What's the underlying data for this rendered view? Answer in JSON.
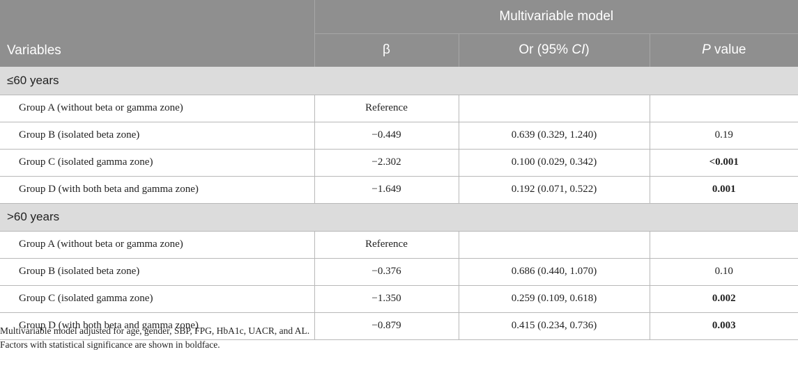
{
  "header": {
    "variables_label": "Variables",
    "group_label": "Multivariable model",
    "col_beta": "β",
    "col_or_prefix": "Or (95% ",
    "col_or_ci": "CI",
    "col_or_suffix": ")",
    "col_p_italic": "P",
    "col_p_suffix": " value"
  },
  "sections": [
    {
      "label": "≤60 years",
      "rows": [
        {
          "variable": "Group A (without beta or gamma zone)",
          "beta": "Reference",
          "or": "",
          "p": "",
          "p_bold": false
        },
        {
          "variable": "Group B (isolated beta zone)",
          "beta": "−0.449",
          "or": "0.639 (0.329, 1.240)",
          "p": "0.19",
          "p_bold": false
        },
        {
          "variable": "Group C (isolated gamma zone)",
          "beta": "−2.302",
          "or": "0.100 (0.029, 0.342)",
          "p": "<0.001",
          "p_bold": true
        },
        {
          "variable": "Group D (with both beta and gamma zone)",
          "beta": "−1.649",
          "or": "0.192 (0.071, 0.522)",
          "p": "0.001",
          "p_bold": true
        }
      ]
    },
    {
      "label": ">60 years",
      "rows": [
        {
          "variable": "Group A (without beta or gamma zone)",
          "beta": "Reference",
          "or": "",
          "p": "",
          "p_bold": false
        },
        {
          "variable": "Group B (isolated beta zone)",
          "beta": "−0.376",
          "or": "0.686 (0.440, 1.070)",
          "p": "0.10",
          "p_bold": false
        },
        {
          "variable": "Group C (isolated gamma zone)",
          "beta": "−1.350",
          "or": "0.259 (0.109, 0.618)",
          "p": "0.002",
          "p_bold": true
        },
        {
          "variable": "Group D (with both beta and gamma zone)",
          "beta": "−0.879",
          "or": "0.415 (0.234, 0.736)",
          "p": "0.003",
          "p_bold": true
        }
      ]
    }
  ],
  "footnotes": [
    "Multivariable model adjusted for age, gender, SBP, FPG, HbA1c, UACR, and AL.",
    "Factors with statistical significance are shown in boldface."
  ],
  "colors": {
    "header_bg": "#8f8f8f",
    "section_bg": "#dcdcdc",
    "border": "#b8b8b8"
  }
}
